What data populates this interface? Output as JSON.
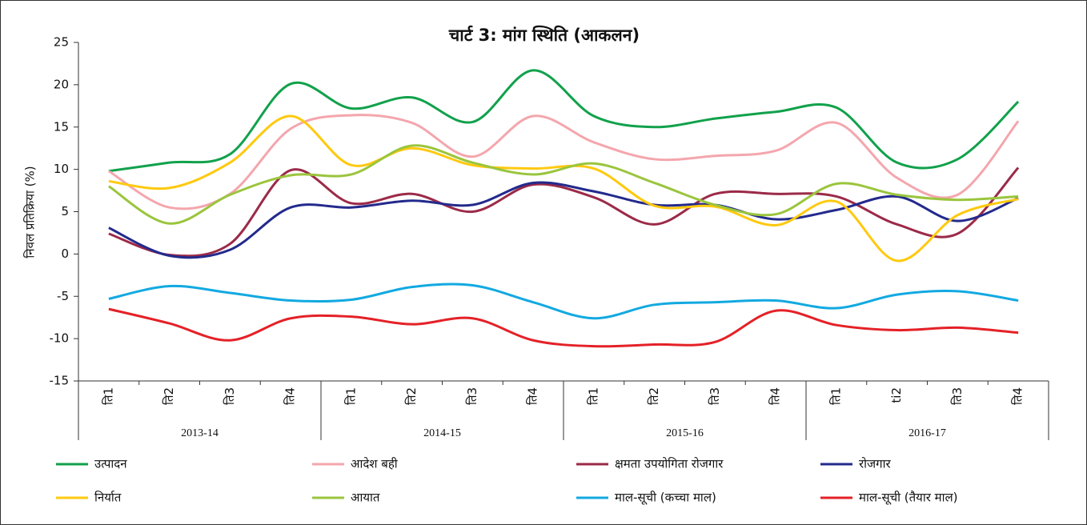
{
  "chart_data": {
    "type": "line",
    "title": "चार्ट 3: मांग स्थिति (आकलन)",
    "y_label": "निवल प्रतिक्रिया (%)",
    "categories": [
      "ति1",
      "ति2",
      "ति3",
      "ति4",
      "ति1",
      "ति2",
      "ति3",
      "ति4",
      "ति1",
      "ति2",
      "ति3",
      "ति4",
      "ति1",
      "ti2",
      "ति3",
      "ति4"
    ],
    "groups": [
      "2013-14",
      "2014-15",
      "2015-16",
      "2016-17"
    ],
    "ylim": [
      -15,
      25
    ],
    "yticks": [
      -15,
      -10,
      -5,
      0,
      5,
      10,
      15,
      20,
      25
    ],
    "smooth": true,
    "series": [
      {
        "name": "उत्पादन",
        "color": "#11a14b",
        "values": [
          9.8,
          10.8,
          11.8,
          20.1,
          17.2,
          18.5,
          15.6,
          21.7,
          16.3,
          15,
          16,
          16.8,
          17.3,
          10.8,
          11.2,
          18
        ]
      },
      {
        "name": "आदेश बही",
        "color": "#f4a6ad",
        "values": [
          9.8,
          5.5,
          7.1,
          14.8,
          16.4,
          15.5,
          11.5,
          16.3,
          13.2,
          11.2,
          11.6,
          12.2,
          15.5,
          9,
          7,
          15.7
        ]
      },
      {
        "name": "क्षमता उपयोगिता रोजगार",
        "color": "#9b2a48",
        "values": [
          2.4,
          -0.1,
          1.2,
          9.9,
          6,
          7.1,
          5,
          8.2,
          6.7,
          3.5,
          7.1,
          7.1,
          6.8,
          3.5,
          2.4,
          10.2
        ]
      },
      {
        "name": "रोजगार",
        "color": "#232a8c",
        "values": [
          3.1,
          -0.2,
          0.5,
          5.5,
          5.5,
          6.3,
          5.8,
          8.4,
          7.4,
          5.8,
          5.8,
          4.1,
          5.2,
          6.8,
          3.9,
          6.6
        ]
      },
      {
        "name": "निर्यात",
        "color": "#ffc90e",
        "values": [
          8.6,
          7.8,
          10.8,
          16.3,
          10.5,
          12.5,
          10.5,
          10.1,
          10.1,
          5.7,
          5.6,
          3.4,
          6.2,
          -0.8,
          4.6,
          6.5
        ]
      },
      {
        "name": "आयात",
        "color": "#9ac53c",
        "values": [
          8,
          3.6,
          7,
          9.3,
          9.4,
          12.8,
          10.8,
          9.4,
          10.7,
          8.4,
          5.8,
          4.7,
          8.3,
          7,
          6.4,
          6.8
        ]
      },
      {
        "name": "माल-सूची (कच्चा माल)",
        "color": "#12a9e1",
        "values": [
          -5.3,
          -3.8,
          -4.6,
          -5.5,
          -5.4,
          -3.9,
          -3.7,
          -5.7,
          -7.6,
          -6,
          -5.7,
          -5.5,
          -6.4,
          -4.8,
          -4.4,
          -5.5
        ]
      },
      {
        "name": "माल-सूची (तैयार माल)",
        "color": "#e42127",
        "values": [
          -6.5,
          -8.2,
          -10.2,
          -7.6,
          -7.4,
          -8.3,
          -7.6,
          -10.2,
          -10.9,
          -10.7,
          -10.4,
          -6.7,
          -8.4,
          -9,
          -8.7,
          -9.3
        ]
      }
    ]
  }
}
